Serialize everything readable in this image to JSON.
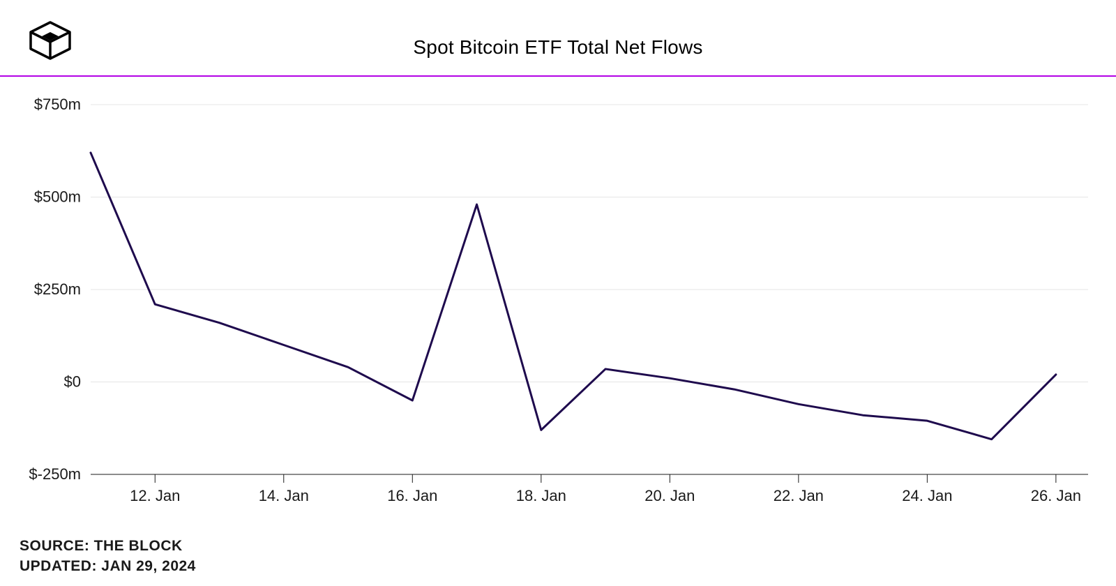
{
  "chart": {
    "type": "line",
    "title": "Spot Bitcoin ETF Total Net Flows",
    "accent_color": "#b300e6",
    "line_color": "#1e0a4d",
    "grid_color": "#e5e5e5",
    "axis_color": "#1a1a1a",
    "background_color": "#ffffff",
    "line_width": 3,
    "title_fontsize": 28,
    "label_fontsize": 22,
    "y": {
      "min": -250,
      "max": 750,
      "ticks": [
        -250,
        0,
        250,
        500,
        750
      ],
      "tick_labels": [
        "$-250m",
        "$0",
        "$250m",
        "$500m",
        "$750m"
      ]
    },
    "x": {
      "min": 11,
      "max": 26.5,
      "ticks": [
        12,
        14,
        16,
        18,
        20,
        22,
        24,
        26
      ],
      "tick_labels": [
        "12. Jan",
        "14. Jan",
        "16. Jan",
        "18. Jan",
        "20. Jan",
        "22. Jan",
        "24. Jan",
        "26. Jan"
      ]
    },
    "data": {
      "x": [
        11,
        12,
        13,
        14,
        15,
        16,
        17,
        18,
        19,
        20,
        21,
        22,
        23,
        24,
        25,
        26
      ],
      "y": [
        620,
        210,
        160,
        100,
        40,
        -50,
        480,
        -130,
        35,
        10,
        -20,
        -60,
        -90,
        -105,
        -155,
        20
      ]
    }
  },
  "source": {
    "label": "SOURCE: THE BLOCK",
    "updated": "UPDATED: JAN 29, 2024"
  }
}
